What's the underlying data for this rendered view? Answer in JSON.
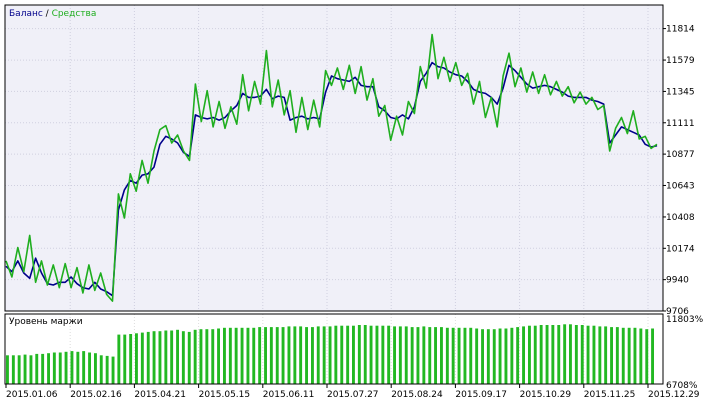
{
  "legend": {
    "balance_label": "Баланс",
    "separator": " / ",
    "equity_label": "Средства",
    "balance_color": "#00008b",
    "equity_color": "#1fae1f"
  },
  "margin_panel": {
    "title": "Уровень маржи",
    "top_label": "11803%",
    "bottom_label": "6708%",
    "bar_color": "#22b822"
  },
  "chart_data": [
    {
      "type": "line",
      "title": "",
      "xlabel": "",
      "ylabel": "",
      "ylim": [
        9706,
        11990
      ],
      "y_ticks": [
        "11814",
        "11579",
        "11345",
        "11111",
        "10877",
        "10643",
        "10408",
        "10174",
        "9940",
        "9706"
      ],
      "x_ticks": [
        "2015.01.06",
        "2015.02.16",
        "2015.04.21",
        "2015.05.15",
        "2015.06.11",
        "2015.07.27",
        "2015.08.24",
        "2015.09.17",
        "2015.10.29",
        "2015.11.25",
        "2015.12.29"
      ],
      "grid": true,
      "legend_position": "top-left",
      "series": [
        {
          "name": "Баланс",
          "color": "#00008b",
          "values": [
            10040,
            10000,
            10080,
            9990,
            9950,
            10100,
            9990,
            9910,
            9900,
            9920,
            9920,
            9960,
            9910,
            9880,
            9870,
            9920,
            9870,
            9850,
            9820,
            10460,
            10610,
            10680,
            10660,
            10720,
            10730,
            10780,
            10950,
            11010,
            10990,
            10960,
            10890,
            10860,
            11170,
            11150,
            11140,
            11150,
            11130,
            11150,
            11200,
            11240,
            11330,
            11300,
            11300,
            11310,
            11360,
            11290,
            11310,
            11300,
            11130,
            11150,
            11160,
            11140,
            11150,
            11140,
            11340,
            11460,
            11440,
            11430,
            11420,
            11450,
            11390,
            11380,
            11380,
            11230,
            11200,
            11150,
            11140,
            11170,
            11140,
            11230,
            11420,
            11480,
            11560,
            11530,
            11520,
            11490,
            11470,
            11460,
            11420,
            11360,
            11340,
            11330,
            11300,
            11250,
            11370,
            11540,
            11500,
            11450,
            11400,
            11370,
            11380,
            11390,
            11380,
            11360,
            11340,
            11310,
            11300,
            11300,
            11300,
            11280,
            11270,
            11250,
            10960,
            11020,
            11080,
            11060,
            11040,
            11020,
            10950,
            10930,
            10940
          ]
        },
        {
          "name": "Средства",
          "color": "#1fae1f",
          "values": [
            10080,
            9960,
            10180,
            10000,
            10270,
            9920,
            10080,
            9900,
            10050,
            9880,
            10060,
            9880,
            10030,
            9840,
            10050,
            9860,
            9990,
            9830,
            9780,
            10580,
            10400,
            10730,
            10600,
            10830,
            10660,
            10900,
            11060,
            11090,
            10960,
            11020,
            10900,
            10830,
            11400,
            11120,
            11350,
            11080,
            11270,
            11070,
            11230,
            11100,
            11470,
            11200,
            11420,
            11250,
            11650,
            11230,
            11430,
            11170,
            11350,
            11040,
            11300,
            11060,
            11280,
            11080,
            11500,
            11390,
            11520,
            11360,
            11540,
            11330,
            11530,
            11280,
            11440,
            11160,
            11240,
            10980,
            11160,
            11020,
            11270,
            11180,
            11530,
            11370,
            11770,
            11440,
            11600,
            11420,
            11560,
            11390,
            11480,
            11250,
            11420,
            11150,
            11300,
            11080,
            11460,
            11630,
            11380,
            11520,
            11340,
            11490,
            11330,
            11470,
            11320,
            11420,
            11310,
            11380,
            11260,
            11340,
            11250,
            11300,
            11210,
            11240,
            10900,
            11070,
            11150,
            11030,
            11200,
            10990,
            11010,
            10920,
            10950
          ]
        }
      ]
    },
    {
      "type": "bar",
      "title": "Уровень маржи",
      "xlabel": "",
      "ylabel": "",
      "ylim": [
        6708,
        11803
      ],
      "y_ticks": [
        "11803%",
        "6708%"
      ],
      "series": [
        {
          "name": "",
          "color": "#22b822",
          "values": [
            8800,
            8800,
            8800,
            8850,
            8800,
            8900,
            8900,
            8950,
            9000,
            9000,
            9050,
            9100,
            9050,
            9100,
            9000,
            8950,
            8800,
            8750,
            8700,
            10300,
            10300,
            10350,
            10400,
            10450,
            10500,
            10550,
            10550,
            10600,
            10600,
            10650,
            10550,
            10500,
            10650,
            10700,
            10700,
            10700,
            10750,
            10800,
            10800,
            10800,
            10800,
            10800,
            10800,
            10850,
            10850,
            10850,
            10850,
            10850,
            10900,
            10900,
            10900,
            10850,
            10850,
            10900,
            10900,
            10900,
            10950,
            10950,
            10950,
            10950,
            11000,
            11000,
            10950,
            10950,
            10950,
            10950,
            10900,
            10900,
            10900,
            10850,
            10850,
            10900,
            10850,
            10850,
            10850,
            10800,
            10800,
            10800,
            10800,
            10800,
            10750,
            10700,
            10700,
            10700,
            10750,
            10750,
            10800,
            10850,
            10900,
            10950,
            10950,
            11000,
            11000,
            11000,
            11000,
            11050,
            11050,
            11000,
            11000,
            10950,
            10950,
            10900,
            10900,
            10850,
            10850,
            10800,
            10800,
            10800,
            10750,
            10700,
            10750
          ]
        }
      ]
    }
  ]
}
